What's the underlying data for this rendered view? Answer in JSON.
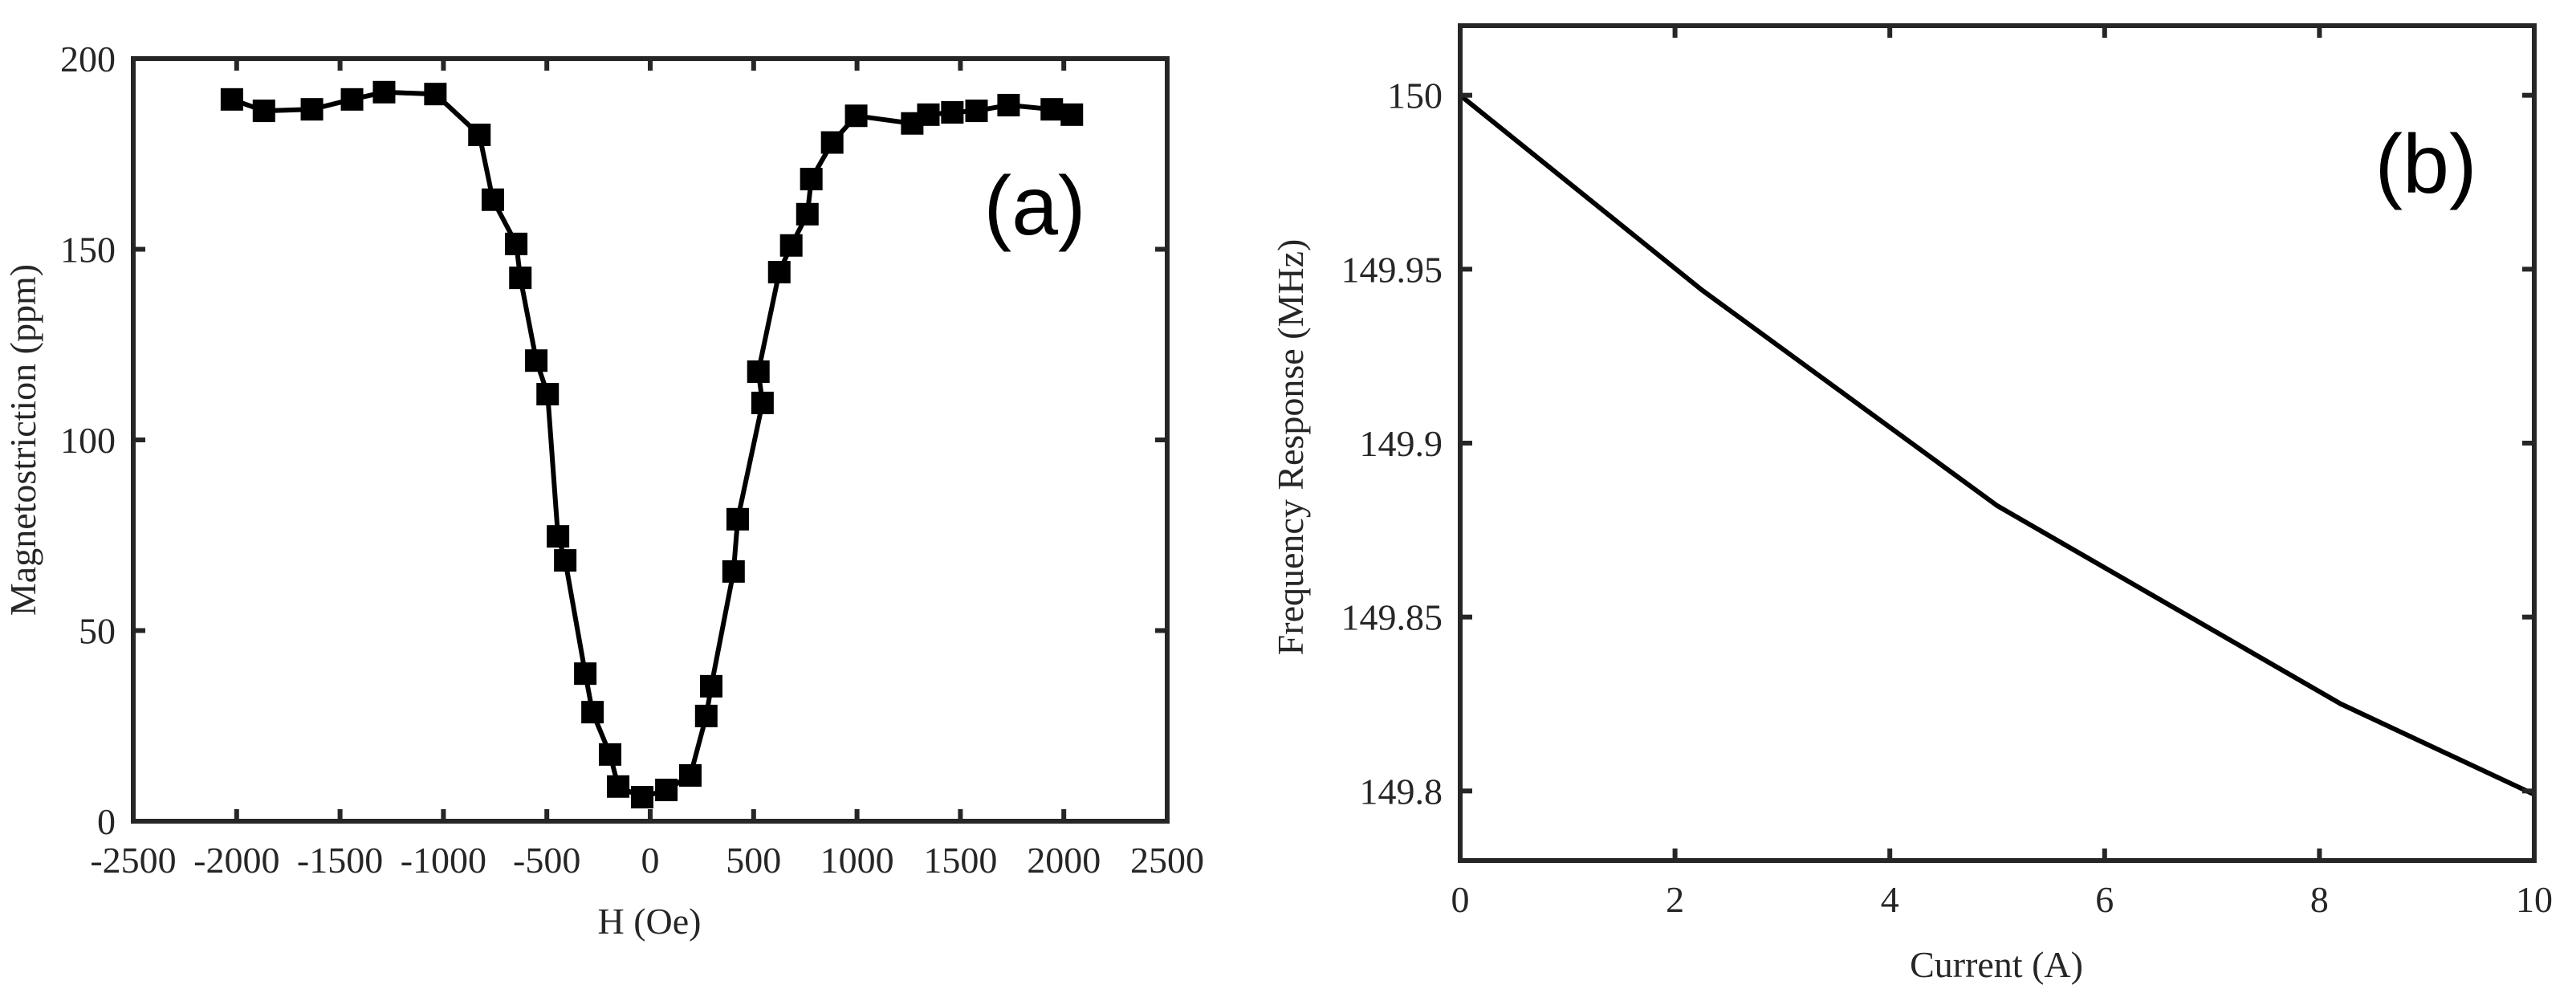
{
  "chart_data": [
    {
      "panel": "(a)",
      "type": "line",
      "marker": "square",
      "title": "",
      "xlabel": "H (Oe)",
      "ylabel": "Magnetostriction (ppm)",
      "xlim": [
        -2500,
        2500
      ],
      "ylim": [
        0,
        200
      ],
      "xticks": [
        -2500,
        -2000,
        -1500,
        -1000,
        -500,
        0,
        500,
        1000,
        1500,
        2000,
        2500
      ],
      "yticks": [
        0,
        50,
        100,
        150,
        200
      ],
      "grid": false,
      "legend": null,
      "annotation": "(a)",
      "series": [
        {
          "name": "Magnetostriction",
          "x": [
            -2023,
            -1868,
            -1636,
            -1442,
            -1287,
            -1039,
            -826,
            -761,
            -648,
            -628,
            -551,
            -496,
            -446,
            -411,
            -314,
            -279,
            -194,
            -155,
            -39,
            78,
            194,
            271,
            295,
            403,
            423,
            543,
            523,
            624,
            682,
            760,
            779,
            880,
            996,
            1267,
            1345,
            1461,
            1578,
            1733,
            1942,
            2039
          ],
          "y": [
            189.3,
            186.3,
            186.7,
            189.3,
            191.2,
            190.7,
            180.0,
            163.0,
            151.4,
            142.5,
            120.8,
            112.0,
            74.7,
            68.4,
            38.7,
            28.6,
            17.5,
            9.1,
            6.3,
            8.2,
            12.0,
            27.6,
            35.4,
            65.5,
            79.2,
            109.7,
            117.9,
            144.0,
            151.0,
            159.2,
            168.4,
            178.0,
            185.0,
            183.0,
            185.3,
            185.9,
            186.3,
            187.8,
            186.7,
            185.3
          ]
        }
      ]
    },
    {
      "panel": "(b)",
      "type": "line",
      "title": "",
      "xlabel": "Current (A)",
      "ylabel": "Frequency Response (MHz)",
      "xlim": [
        0,
        10
      ],
      "ylim": [
        149.78,
        150.02
      ],
      "xticks": [
        0,
        2,
        4,
        6,
        8,
        10
      ],
      "yticks": [
        149.8,
        149.85,
        149.9,
        149.95,
        150
      ],
      "ytick_labels": [
        "149.8",
        "149.85",
        "149.9",
        "149.95",
        "150"
      ],
      "grid": false,
      "legend": null,
      "annotation": "(b)",
      "series": [
        {
          "name": "Frequency Response",
          "x": [
            0,
            2.25,
            5.0,
            8.2,
            10
          ],
          "y": [
            150.0,
            149.944,
            149.882,
            149.825,
            149.799
          ]
        }
      ]
    }
  ],
  "panels": {
    "a": {
      "label": "(a)",
      "xlabel": "H (Oe)",
      "ylabel": "Magnetostriction (ppm)",
      "xtick_labels": [
        "-2500",
        "-2000",
        "-1500",
        "-1000",
        "-500",
        "0",
        "500",
        "1000",
        "1500",
        "2000",
        "2500"
      ],
      "ytick_labels": [
        "0",
        "50",
        "100",
        "150",
        "200"
      ]
    },
    "b": {
      "label": "(b)",
      "xlabel": "Current (A)",
      "ylabel": "Frequency Response (MHz)",
      "xtick_labels": [
        "0",
        "2",
        "4",
        "6",
        "8",
        "10"
      ],
      "ytick_labels": [
        "149.8",
        "149.85",
        "149.9",
        "149.95",
        "150"
      ]
    }
  },
  "colors": {
    "axis": "#262626",
    "line": "#000000",
    "marker": "#000000",
    "background": "#ffffff"
  }
}
